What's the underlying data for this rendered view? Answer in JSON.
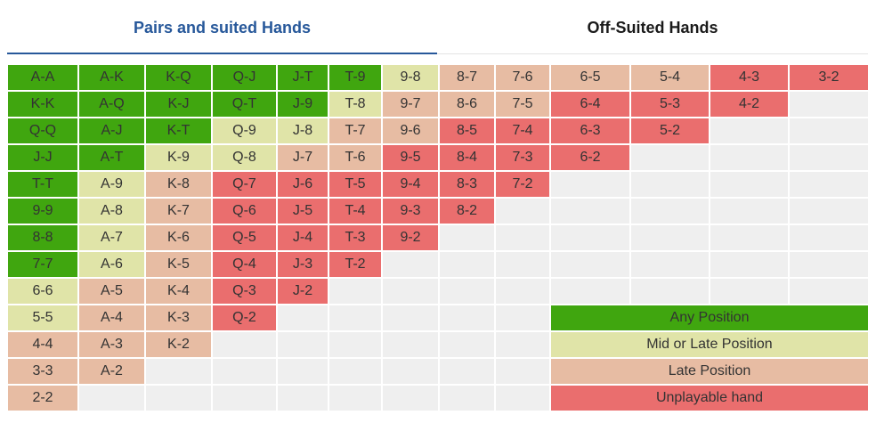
{
  "tabs": [
    {
      "label": "Pairs and suited Hands",
      "active": true
    },
    {
      "label": "Off-Suited Hands",
      "active": false
    }
  ],
  "colors": {
    "any": "#40a60f",
    "mid": "#e0e4a8",
    "late": "#e7bca3",
    "unplayable": "#ea6e6e",
    "empty": "#efefef"
  },
  "grid": {
    "columns": [
      [
        [
          "A-A",
          "any"
        ],
        [
          "K-K",
          "any"
        ],
        [
          "Q-Q",
          "any"
        ],
        [
          "J-J",
          "any"
        ],
        [
          "T-T",
          "any"
        ],
        [
          "9-9",
          "any"
        ],
        [
          "8-8",
          "any"
        ],
        [
          "7-7",
          "any"
        ],
        [
          "6-6",
          "mid"
        ],
        [
          "5-5",
          "mid"
        ],
        [
          "4-4",
          "late"
        ],
        [
          "3-3",
          "late"
        ],
        [
          "2-2",
          "late"
        ]
      ],
      [
        [
          "A-K",
          "any"
        ],
        [
          "A-Q",
          "any"
        ],
        [
          "A-J",
          "any"
        ],
        [
          "A-T",
          "any"
        ],
        [
          "A-9",
          "mid"
        ],
        [
          "A-8",
          "mid"
        ],
        [
          "A-7",
          "mid"
        ],
        [
          "A-6",
          "mid"
        ],
        [
          "A-5",
          "late"
        ],
        [
          "A-4",
          "late"
        ],
        [
          "A-3",
          "late"
        ],
        [
          "A-2",
          "late"
        ],
        [
          "",
          "empty"
        ]
      ],
      [
        [
          "K-Q",
          "any"
        ],
        [
          "K-J",
          "any"
        ],
        [
          "K-T",
          "any"
        ],
        [
          "K-9",
          "mid"
        ],
        [
          "K-8",
          "late"
        ],
        [
          "K-7",
          "late"
        ],
        [
          "K-6",
          "late"
        ],
        [
          "K-5",
          "late"
        ],
        [
          "K-4",
          "late"
        ],
        [
          "K-3",
          "late"
        ],
        [
          "K-2",
          "late"
        ],
        [
          "",
          "empty"
        ],
        [
          "",
          "empty"
        ]
      ],
      [
        [
          "Q-J",
          "any"
        ],
        [
          "Q-T",
          "any"
        ],
        [
          "Q-9",
          "mid"
        ],
        [
          "Q-8",
          "mid"
        ],
        [
          "Q-7",
          "unplayable"
        ],
        [
          "Q-6",
          "unplayable"
        ],
        [
          "Q-5",
          "unplayable"
        ],
        [
          "Q-4",
          "unplayable"
        ],
        [
          "Q-3",
          "unplayable"
        ],
        [
          "Q-2",
          "unplayable"
        ],
        [
          "",
          "empty"
        ],
        [
          "",
          "empty"
        ],
        [
          "",
          "empty"
        ]
      ],
      [
        [
          "J-T",
          "any"
        ],
        [
          "J-9",
          "any"
        ],
        [
          "J-8",
          "mid"
        ],
        [
          "J-7",
          "late"
        ],
        [
          "J-6",
          "unplayable"
        ],
        [
          "J-5",
          "unplayable"
        ],
        [
          "J-4",
          "unplayable"
        ],
        [
          "J-3",
          "unplayable"
        ],
        [
          "J-2",
          "unplayable"
        ],
        [
          "",
          "empty"
        ],
        [
          "",
          "empty"
        ],
        [
          "",
          "empty"
        ],
        [
          "",
          "empty"
        ]
      ],
      [
        [
          "T-9",
          "any"
        ],
        [
          "T-8",
          "mid"
        ],
        [
          "T-7",
          "late"
        ],
        [
          "T-6",
          "late"
        ],
        [
          "T-5",
          "unplayable"
        ],
        [
          "T-4",
          "unplayable"
        ],
        [
          "T-3",
          "unplayable"
        ],
        [
          "T-2",
          "unplayable"
        ],
        [
          "",
          "empty"
        ],
        [
          "",
          "empty"
        ],
        [
          "",
          "empty"
        ],
        [
          "",
          "empty"
        ],
        [
          "",
          "empty"
        ]
      ],
      [
        [
          "9-8",
          "mid"
        ],
        [
          "9-7",
          "late"
        ],
        [
          "9-6",
          "late"
        ],
        [
          "9-5",
          "unplayable"
        ],
        [
          "9-4",
          "unplayable"
        ],
        [
          "9-3",
          "unplayable"
        ],
        [
          "9-2",
          "unplayable"
        ],
        [
          "",
          "empty"
        ],
        [
          "",
          "empty"
        ],
        [
          "",
          "empty"
        ],
        [
          "",
          "empty"
        ],
        [
          "",
          "empty"
        ],
        [
          "",
          "empty"
        ]
      ],
      [
        [
          "8-7",
          "late"
        ],
        [
          "8-6",
          "late"
        ],
        [
          "8-5",
          "unplayable"
        ],
        [
          "8-4",
          "unplayable"
        ],
        [
          "8-3",
          "unplayable"
        ],
        [
          "8-2",
          "unplayable"
        ],
        [
          "",
          "empty"
        ],
        [
          "",
          "empty"
        ],
        [
          "",
          "empty"
        ],
        [
          "",
          "empty"
        ],
        [
          "",
          "empty"
        ],
        [
          "",
          "empty"
        ],
        [
          "",
          "empty"
        ]
      ],
      [
        [
          "7-6",
          "late"
        ],
        [
          "7-5",
          "late"
        ],
        [
          "7-4",
          "unplayable"
        ],
        [
          "7-3",
          "unplayable"
        ],
        [
          "7-2",
          "unplayable"
        ],
        [
          "",
          "empty"
        ],
        [
          "",
          "empty"
        ],
        [
          "",
          "empty"
        ],
        [
          "",
          "empty"
        ],
        [
          "",
          "empty"
        ],
        [
          "",
          "empty"
        ],
        [
          "",
          "empty"
        ],
        [
          "",
          "empty"
        ]
      ],
      [
        [
          "6-5",
          "late"
        ],
        [
          "6-4",
          "unplayable"
        ],
        [
          "6-3",
          "unplayable"
        ],
        [
          "6-2",
          "unplayable"
        ],
        [
          "",
          "empty"
        ],
        [
          "",
          "empty"
        ],
        [
          "",
          "empty"
        ],
        [
          "",
          "empty"
        ],
        [
          "",
          "empty"
        ],
        [
          "",
          "empty"
        ],
        [
          "",
          "empty"
        ],
        [
          "",
          "empty"
        ],
        [
          "",
          "empty"
        ]
      ],
      [
        [
          "5-4",
          "late"
        ],
        [
          "5-3",
          "unplayable"
        ],
        [
          "5-2",
          "unplayable"
        ],
        [
          "",
          "empty"
        ],
        [
          "",
          "empty"
        ],
        [
          "",
          "empty"
        ],
        [
          "",
          "empty"
        ],
        [
          "",
          "empty"
        ],
        [
          "",
          "empty"
        ],
        [
          "",
          "empty"
        ],
        [
          "",
          "empty"
        ],
        [
          "",
          "empty"
        ],
        [
          "",
          "empty"
        ]
      ],
      [
        [
          "4-3",
          "unplayable"
        ],
        [
          "4-2",
          "unplayable"
        ],
        [
          "",
          "empty"
        ],
        [
          "",
          "empty"
        ],
        [
          "",
          "empty"
        ],
        [
          "",
          "empty"
        ],
        [
          "",
          "empty"
        ],
        [
          "",
          "empty"
        ],
        [
          "",
          "empty"
        ],
        [
          "",
          "empty"
        ],
        [
          "",
          "empty"
        ],
        [
          "",
          "empty"
        ],
        [
          "",
          "empty"
        ]
      ],
      [
        [
          "3-2",
          "unplayable"
        ],
        [
          "",
          "empty"
        ],
        [
          "",
          "empty"
        ],
        [
          "",
          "empty"
        ],
        [
          "",
          "empty"
        ],
        [
          "",
          "empty"
        ],
        [
          "",
          "empty"
        ],
        [
          "",
          "empty"
        ],
        [
          "",
          "empty"
        ],
        [
          "",
          "empty"
        ],
        [
          "",
          "empty"
        ],
        [
          "",
          "empty"
        ],
        [
          "",
          "empty"
        ]
      ]
    ]
  },
  "legend": [
    {
      "label": "Any Position",
      "color": "any"
    },
    {
      "label": "Mid or Late Position",
      "color": "mid"
    },
    {
      "label": "Late Position",
      "color": "late"
    },
    {
      "label": "Unplayable hand",
      "color": "unplayable"
    }
  ]
}
